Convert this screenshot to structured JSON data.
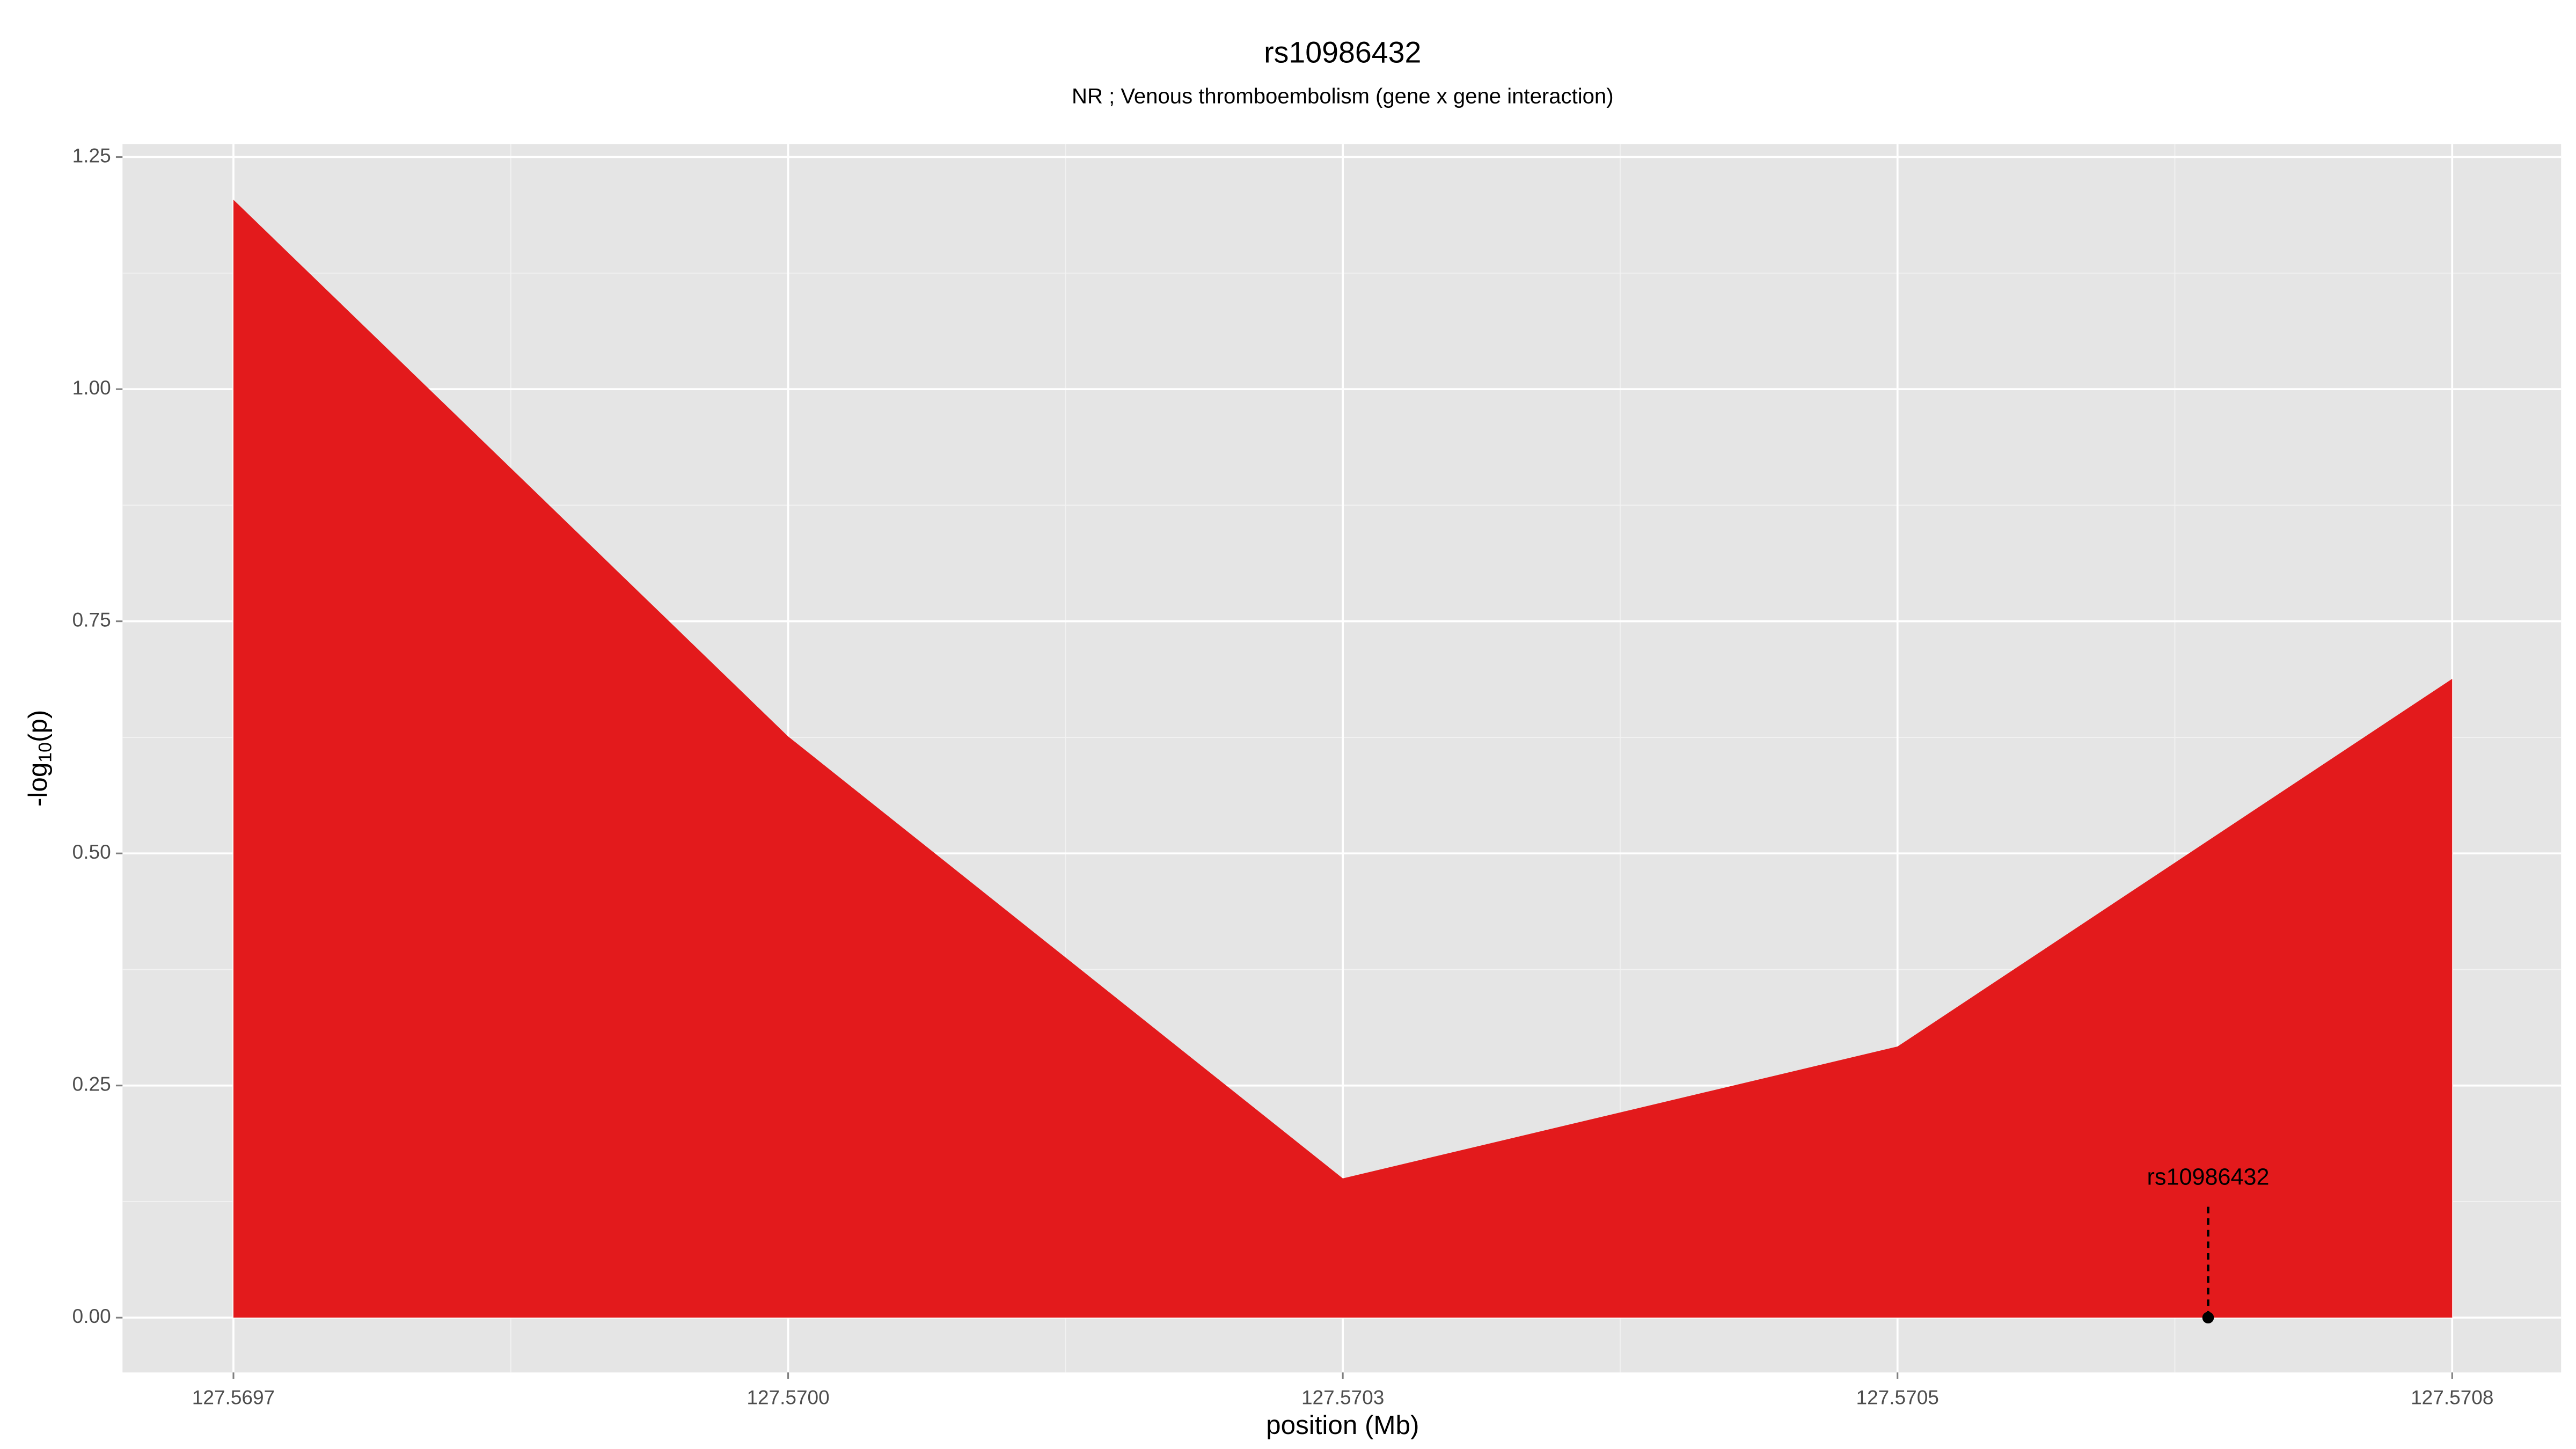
{
  "chart_data": {
    "type": "area",
    "title": "rs10986432",
    "subtitle": "NR ; Venous thromboembolism (gene x gene interaction)",
    "x_label": "position (Mb)",
    "y_label": {
      "prefix": "-log",
      "sub": "10",
      "suffix": "(p)"
    },
    "x": [
      127.5697,
      127.569975,
      127.57025,
      127.570525,
      127.5708
    ],
    "values": [
      1.204,
      0.626,
      0.15,
      0.292,
      0.688
    ],
    "color": "#e31a1c",
    "xlim": [
      127.569645,
      127.570854
    ],
    "ylim": [
      -0.059,
      1.264
    ],
    "xticks": [
      {
        "value": 127.5697,
        "label": "127.5697"
      },
      {
        "value": 127.569975,
        "label": "127.5700"
      },
      {
        "value": 127.57025,
        "label": "127.5703"
      },
      {
        "value": 127.570525,
        "label": "127.5705"
      },
      {
        "value": 127.5708,
        "label": "127.5708"
      }
    ],
    "yticks": [
      {
        "value": 0,
        "label": "0.00"
      },
      {
        "value": 0.25,
        "label": "0.25"
      },
      {
        "value": 0.5,
        "label": "0.50"
      },
      {
        "value": 0.75,
        "label": "0.75"
      },
      {
        "value": 1,
        "label": "1.00"
      },
      {
        "value": 1.25,
        "label": "1.25"
      }
    ],
    "grid": true,
    "annotation": {
      "label": "rs10986432",
      "x": 127.570679,
      "y": 0
    }
  }
}
